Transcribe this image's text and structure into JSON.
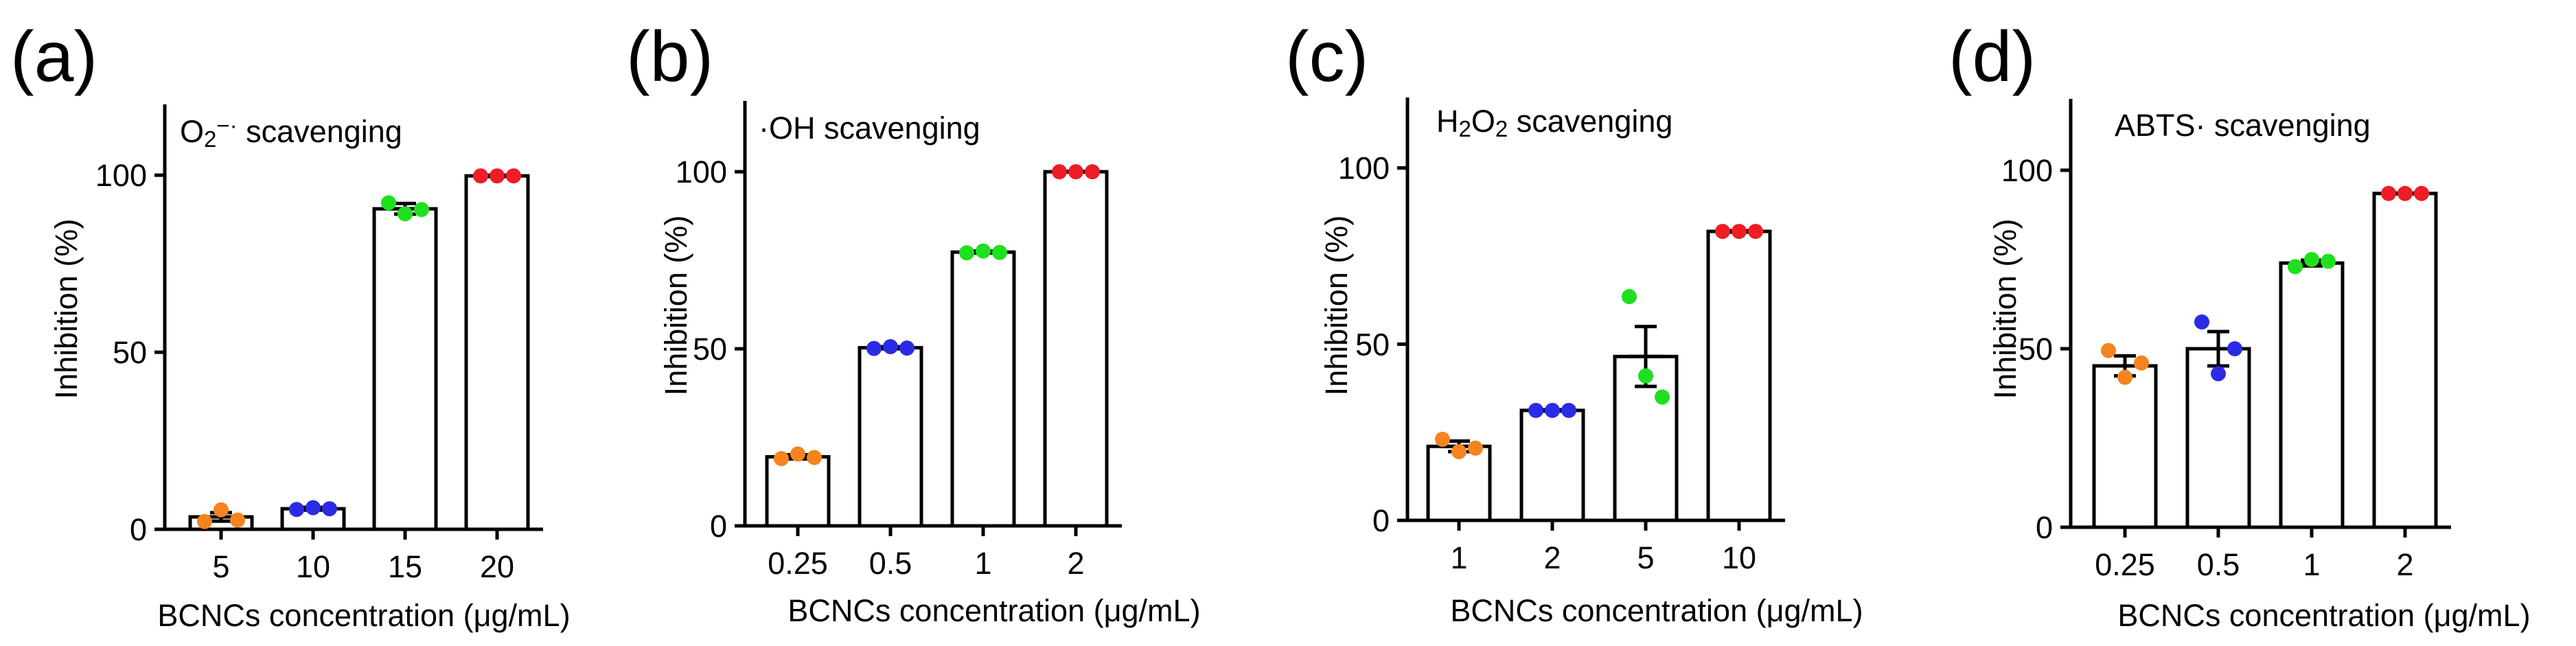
{
  "chart_data": [
    {
      "type": "bar",
      "panel": "(a)",
      "title_text": "O₂⁻· scavenging",
      "title_parts": [
        {
          "t": "O",
          "style": "normal"
        },
        {
          "t": "2",
          "style": "sub"
        },
        {
          "t": "−·",
          "style": "sup"
        },
        {
          "t": " scavenging",
          "style": "normal"
        }
      ],
      "xlabel": "BCNCs concentration (μg/mL)",
      "ylabel": "Inhibition (%)",
      "ylim": [
        0,
        120
      ],
      "yticks": [
        0,
        50,
        100
      ],
      "categories": [
        "5",
        "10",
        "15",
        "20"
      ],
      "values": [
        3.5,
        5.8,
        90.5,
        99.8
      ],
      "errors": [
        1.2,
        0.4,
        1.5,
        0.2
      ],
      "points": [
        [
          2.2,
          5.5,
          2.6
        ],
        [
          5.6,
          6.1,
          5.8
        ],
        [
          92.2,
          89.1,
          90.3
        ],
        [
          99.8,
          99.8,
          99.8
        ]
      ],
      "point_colors": [
        "#f5841f",
        "#2b2be6",
        "#1fe01f",
        "#ee1c25"
      ]
    },
    {
      "type": "bar",
      "panel": "(b)",
      "title_text": "·OH scavenging",
      "title_parts": [
        {
          "t": "·OH scavenging",
          "style": "normal"
        }
      ],
      "xlabel": "BCNCs concentration (μg/mL)",
      "ylabel": "Inhibition (%)",
      "ylim": [
        0,
        120
      ],
      "yticks": [
        0,
        50,
        100
      ],
      "categories": [
        "0.25",
        "0.5",
        "1",
        "2"
      ],
      "values": [
        19.5,
        50.3,
        77.3,
        100
      ],
      "errors": [
        0.6,
        0.3,
        0.3,
        0.1
      ],
      "points": [
        [
          19.0,
          20.3,
          19.3
        ],
        [
          50.1,
          50.6,
          50.2
        ],
        [
          77.1,
          77.6,
          77.2
        ],
        [
          100,
          100,
          100
        ]
      ],
      "point_colors": [
        "#f5841f",
        "#2b2be6",
        "#1fe01f",
        "#ee1c25"
      ]
    },
    {
      "type": "bar",
      "panel": "(c)",
      "title_text": "H₂O₂ scavenging",
      "title_parts": [
        {
          "t": "H",
          "style": "normal"
        },
        {
          "t": "2",
          "style": "sub"
        },
        {
          "t": "O",
          "style": "normal"
        },
        {
          "t": "2",
          "style": "sub"
        },
        {
          "t": " scavenging",
          "style": "normal"
        }
      ],
      "xlabel": "BCNCs concentration (μg/mL)",
      "ylabel": "Inhibition (%)",
      "ylim": [
        0,
        120
      ],
      "yticks": [
        0,
        50,
        100
      ],
      "categories": [
        "1",
        "2",
        "5",
        "10"
      ],
      "values": [
        21,
        31.2,
        46.5,
        82
      ],
      "errors": [
        1.5,
        0.2,
        8.5,
        0.2
      ],
      "points": [
        [
          23.0,
          19.5,
          20.5
        ],
        [
          31.2,
          31.2,
          31.2
        ],
        [
          63.5,
          41.0,
          35.0
        ],
        [
          82,
          82,
          82
        ]
      ],
      "point_colors": [
        "#f5841f",
        "#2b2be6",
        "#1fe01f",
        "#ee1c25"
      ]
    },
    {
      "type": "bar",
      "panel": "(d)",
      "title_text": "ABTS· scavenging",
      "title_parts": [
        {
          "t": "ABTS· scavenging",
          "style": "normal"
        }
      ],
      "xlabel": "BCNCs concentration (μg/mL)",
      "ylabel": "Inhibition (%)",
      "ylim": [
        0,
        120
      ],
      "yticks": [
        0,
        50,
        100
      ],
      "categories": [
        "0.25",
        "0.5",
        "1",
        "2"
      ],
      "values": [
        45.2,
        50,
        74,
        93.5
      ],
      "errors": [
        2.8,
        4.8,
        0.8,
        0.1
      ],
      "points": [
        [
          49.5,
          42.0,
          46.0
        ],
        [
          57.5,
          43.0,
          50.0
        ],
        [
          73.0,
          75.0,
          74.5
        ],
        [
          93.5,
          93.5,
          93.5
        ]
      ],
      "point_colors": [
        "#f5841f",
        "#2b2be6",
        "#1fe01f",
        "#ee1c25"
      ]
    }
  ]
}
